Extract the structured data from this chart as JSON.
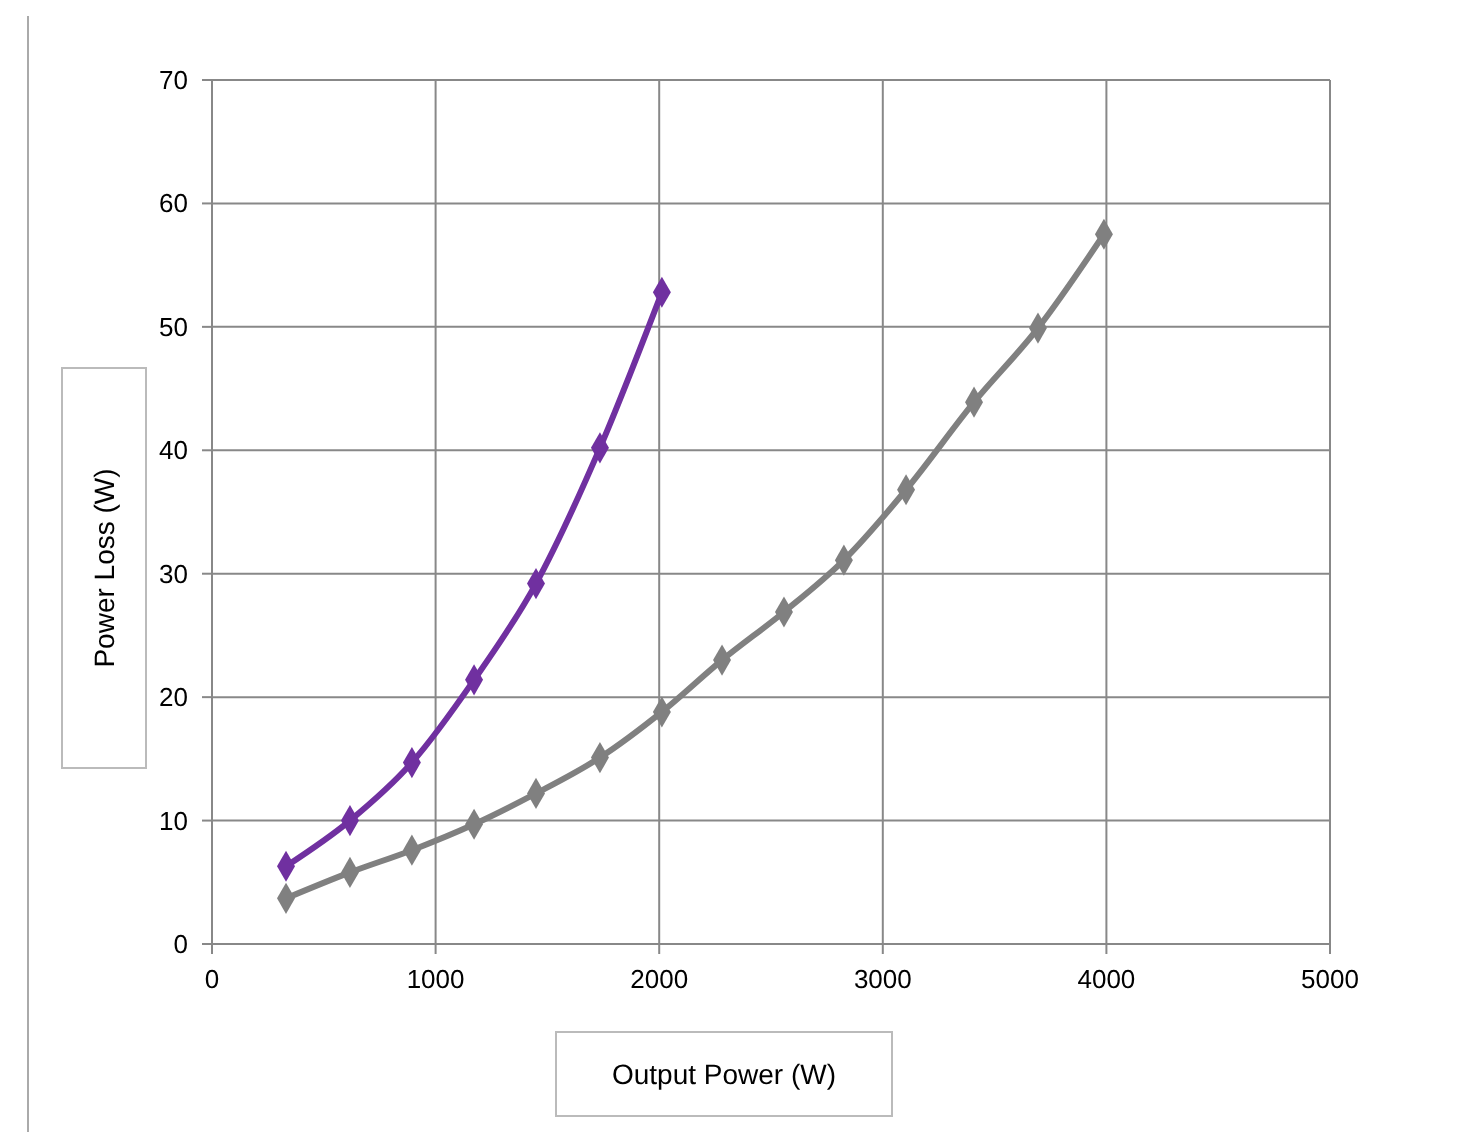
{
  "chart_data": {
    "type": "line",
    "xlabel": "Output Power (W)",
    "ylabel": "Power Loss (W)",
    "xlim": [
      0,
      5000
    ],
    "xticks": [
      0,
      1000,
      2000,
      3000,
      4000,
      5000
    ],
    "ylim": [
      0,
      70
    ],
    "yticks": [
      0,
      10,
      20,
      30,
      40,
      50,
      60,
      70
    ],
    "grid": true,
    "marker": "diamond",
    "line_style": "solid",
    "series": [
      {
        "color": "#7030a0",
        "x": [
          331,
          617,
          894,
          1172,
          1449,
          1735,
          2012
        ],
        "values": [
          6.3,
          10.0,
          14.7,
          21.4,
          29.2,
          40.2,
          52.8
        ]
      },
      {
        "color": "#808080",
        "x": [
          331,
          617,
          894,
          1172,
          1449,
          1735,
          2012,
          2281,
          2558,
          2826,
          3104,
          3408,
          3694,
          3989
        ],
        "values": [
          3.7,
          5.8,
          7.6,
          9.7,
          12.2,
          15.1,
          18.8,
          23.0,
          26.9,
          31.1,
          36.8,
          43.9,
          49.9,
          57.5
        ]
      }
    ]
  }
}
